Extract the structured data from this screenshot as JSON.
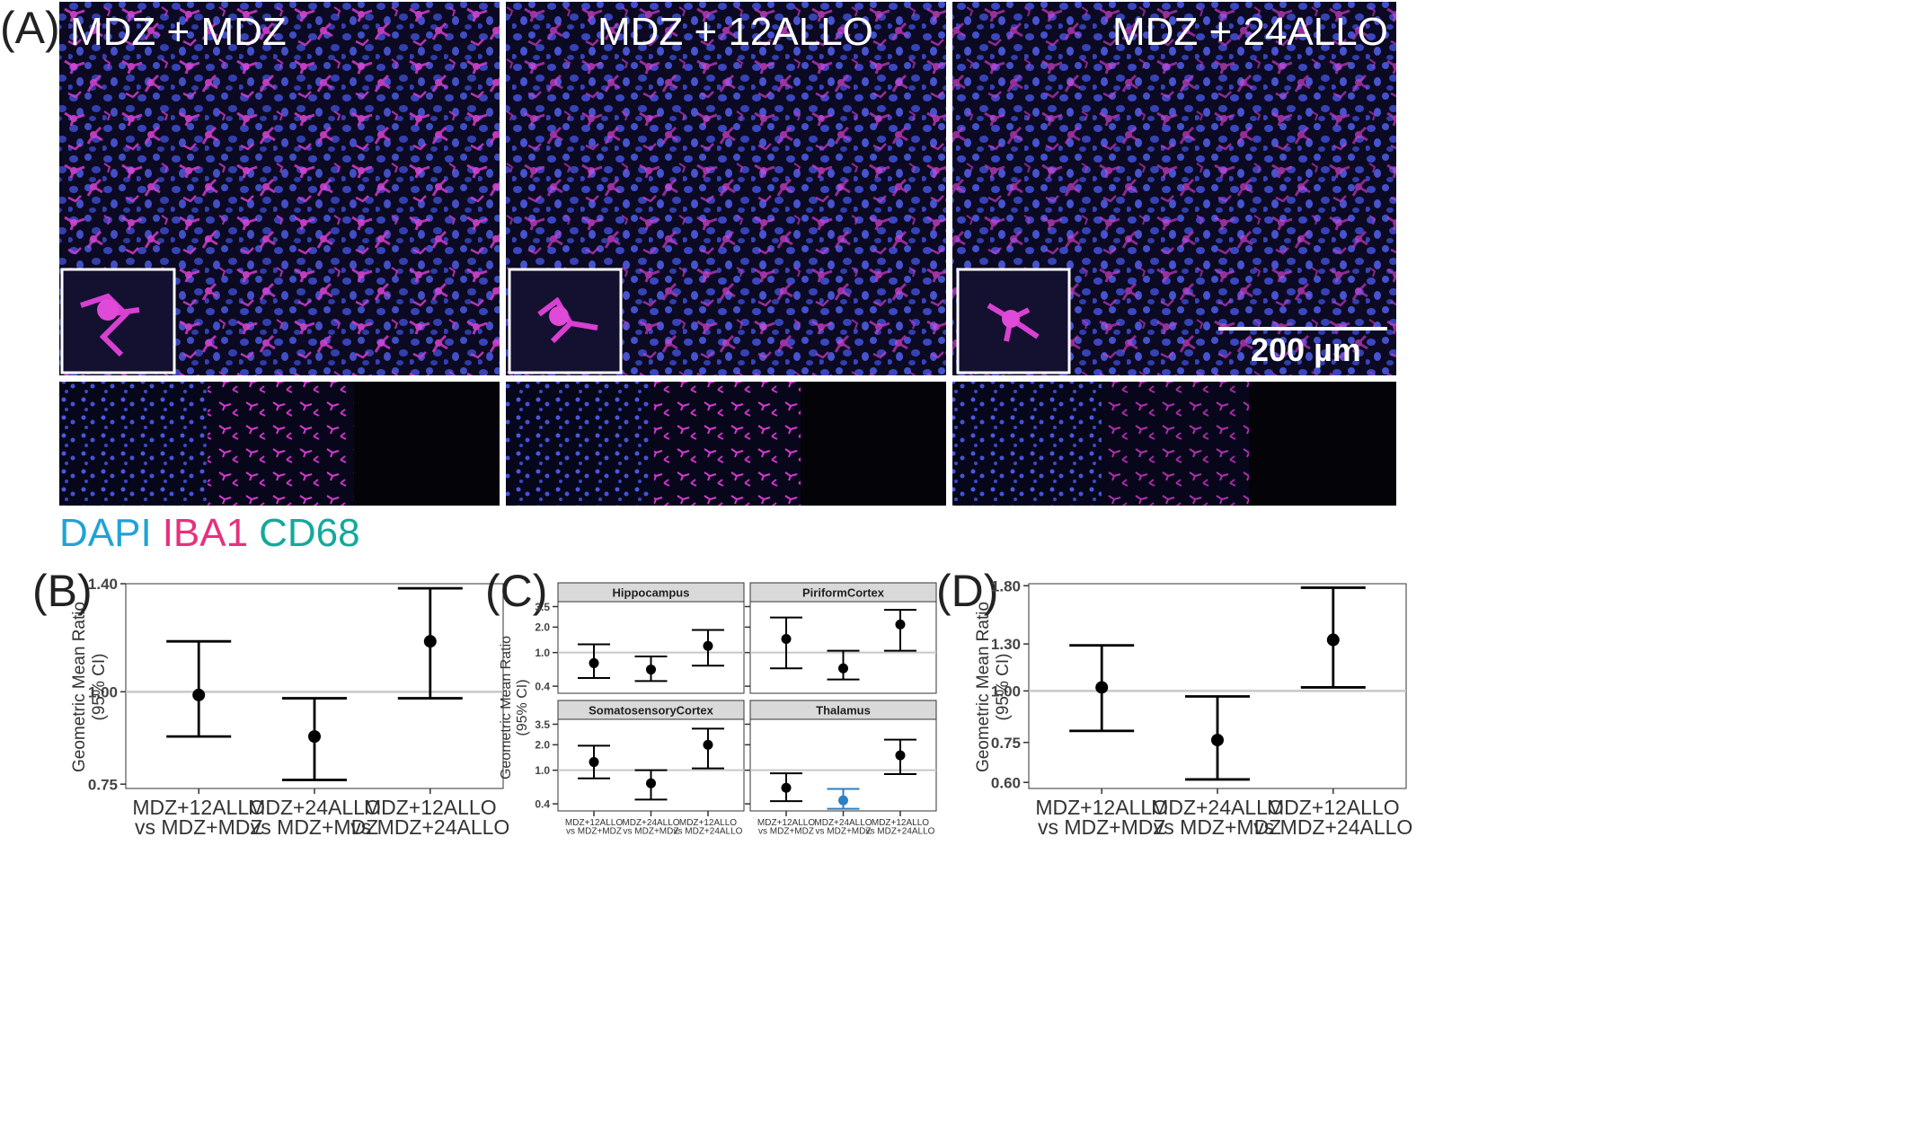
{
  "panel_a": {
    "label": "(A)",
    "images": [
      {
        "title": "MDZ + MDZ"
      },
      {
        "title": "MDZ + 12ALLO"
      },
      {
        "title": "MDZ + 24ALLO"
      }
    ],
    "scalebar": "200 µm",
    "legend": [
      {
        "text": "DAPI",
        "color": "#1fa3d6"
      },
      {
        "text": "IBA1",
        "color": "#e8307c"
      },
      {
        "text": "CD68",
        "color": "#13a99b"
      }
    ]
  },
  "chart_data": [
    {
      "panel": "(B)",
      "type": "scatter",
      "categories": [
        "MDZ+12ALLO\nvs MDZ+MDZ",
        "MDZ+24ALLO\nvs MDZ+MDZ",
        "MDZ+12ALLO\nvs MDZ+24ALLO"
      ],
      "estimate": [
        0.99,
        0.87,
        1.17
      ],
      "ci_low": [
        0.87,
        0.76,
        0.98
      ],
      "ci_high": [
        1.17,
        0.98,
        1.38
      ],
      "ylabel": "Geometric Mean Ratio\n(95% CI)",
      "yticks": [
        0.75,
        1.0,
        1.4
      ],
      "ytick_labels": [
        "0.75",
        "1.00",
        "1.40"
      ],
      "ylim": [
        0.74,
        1.4
      ],
      "scale": "log",
      "reference_line": 1.0,
      "grid": false
    },
    {
      "panel": "(C)",
      "type": "scatter",
      "facets": [
        {
          "title": "Hippocampus",
          "estimate": [
            0.75,
            0.63,
            1.2
          ],
          "ci_low": [
            0.5,
            0.46,
            0.7
          ],
          "ci_high": [
            1.25,
            0.9,
            1.85
          ],
          "point_colors": [
            "#000000",
            "#000000",
            "#000000"
          ]
        },
        {
          "title": "PiriformCortex",
          "estimate": [
            1.45,
            0.65,
            2.15
          ],
          "ci_low": [
            0.65,
            0.48,
            1.05
          ],
          "ci_high": [
            2.6,
            1.05,
            3.2
          ],
          "point_colors": [
            "#000000",
            "#000000",
            "#000000"
          ]
        },
        {
          "title": "SomatosensoryCortex",
          "estimate": [
            1.25,
            0.7,
            2.0
          ],
          "ci_low": [
            0.8,
            0.45,
            1.05
          ],
          "ci_high": [
            1.95,
            1.0,
            3.1
          ],
          "point_colors": [
            "#000000",
            "#000000",
            "#000000"
          ]
        },
        {
          "title": "Thalamus",
          "estimate": [
            0.62,
            0.44,
            1.5
          ],
          "ci_low": [
            0.43,
            0.35,
            0.9
          ],
          "ci_high": [
            0.92,
            0.6,
            2.3
          ],
          "point_colors": [
            "#000000",
            "#2f7fc1",
            "#000000"
          ]
        }
      ],
      "categories": [
        "MDZ+12ALLO\nvs MDZ+MDZ",
        "MDZ+24ALLO\nvs MDZ+MDZ",
        "MDZ+12ALLO\nvs MDZ+24ALLO"
      ],
      "ylabel": "Geometric Mean Ratio\n(95% CI)",
      "yticks": [
        0.4,
        1.0,
        2.0,
        3.5
      ],
      "ytick_labels": [
        "0.4",
        "1.0",
        "2.0",
        "3.5"
      ],
      "ylim": [
        0.33,
        4.0
      ],
      "scale": "log",
      "reference_line": 1.0,
      "grid": false
    },
    {
      "panel": "(D)",
      "type": "scatter",
      "categories": [
        "MDZ+12ALLO\nvs MDZ+MDZ",
        "MDZ+24ALLO\nvs MDZ+MDZ",
        "MDZ+12ALLO\nvs MDZ+24ALLO"
      ],
      "estimate": [
        1.02,
        0.76,
        1.33
      ],
      "ci_low": [
        0.8,
        0.61,
        1.02
      ],
      "ci_high": [
        1.29,
        0.97,
        1.78
      ],
      "ylabel": "Geometric Mean Ratio\n(95% CI)",
      "yticks": [
        0.6,
        0.75,
        1.0,
        1.3,
        1.8
      ],
      "ytick_labels": [
        "0.60",
        "0.75",
        "1.00",
        "1.30",
        "1.80"
      ],
      "ylim": [
        0.58,
        1.82
      ],
      "scale": "log",
      "reference_line": 1.0,
      "grid": false
    }
  ]
}
